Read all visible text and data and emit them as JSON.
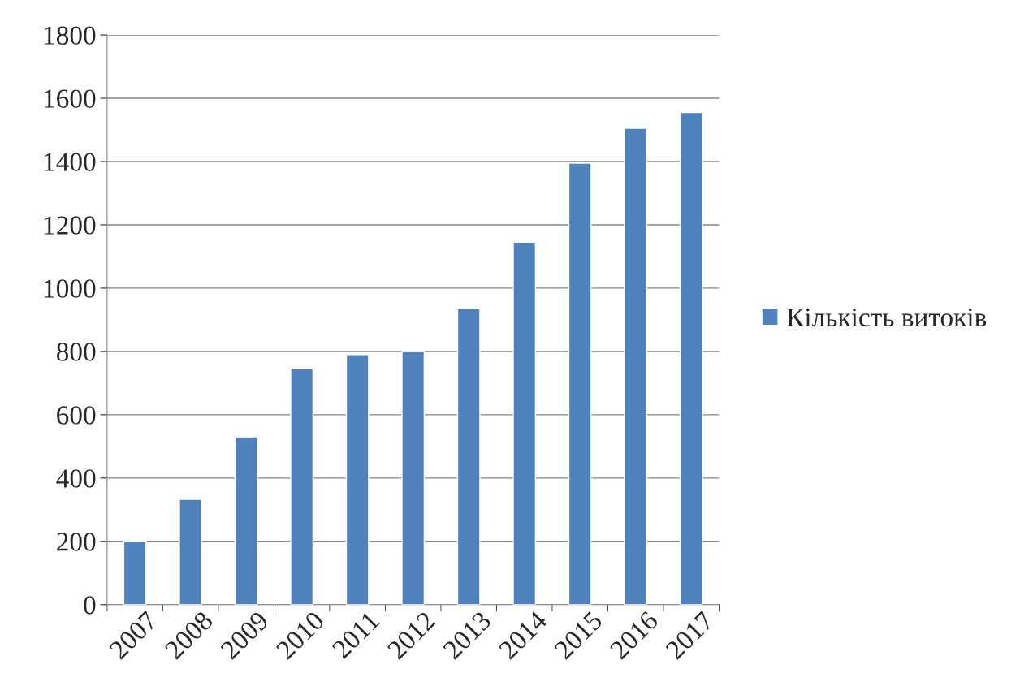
{
  "chart_data": {
    "type": "bar",
    "categories": [
      "2007",
      "2008",
      "2009",
      "2010",
      "2011",
      "2012",
      "2013",
      "2014",
      "2015",
      "2016",
      "2017"
    ],
    "series": [
      {
        "name": "Кількість витоків",
        "color": "#4f81bd",
        "values": [
          200,
          333,
          530,
          745,
          790,
          800,
          935,
          1145,
          1395,
          1505,
          1555
        ]
      }
    ],
    "ylim": [
      0,
      1800
    ],
    "yticks": [
      0,
      200,
      400,
      600,
      800,
      1000,
      1200,
      1400,
      1600,
      1800
    ],
    "grid": "y",
    "legend": "right"
  }
}
